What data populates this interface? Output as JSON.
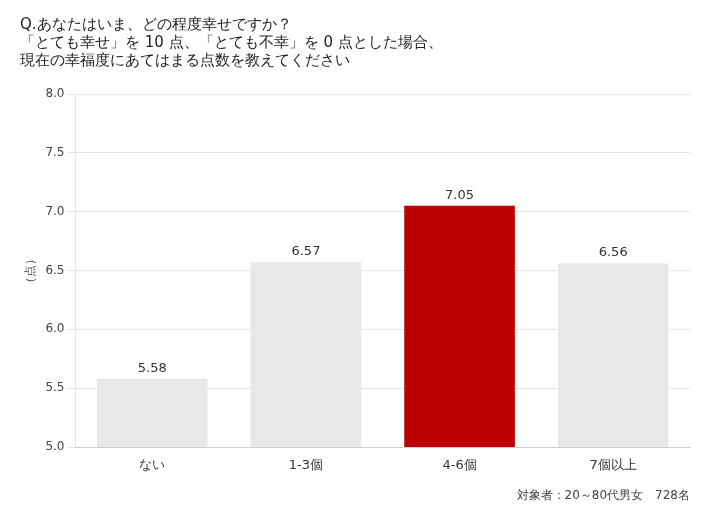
{
  "chart_data": {
    "type": "bar",
    "title": [
      "Q.あなたはいま、どの程度幸せですか？",
      "「とても幸せ」を 10 点、「とても不幸」を 0 点とした場合、",
      "現在の幸福度にあてはまる点数を教えてください"
    ],
    "categories": [
      "ない",
      "1-3個",
      "4-6個",
      "7個以上"
    ],
    "values": [
      5.58,
      6.57,
      7.05,
      6.56
    ],
    "colors": [
      "#e8e8e8",
      "#e8e8e8",
      "#bb0000",
      "#e8e8e8"
    ],
    "ylabel": "（点）",
    "annotations": [
      "対象者：20～80代男女　728名"
    ],
    "ylim": [
      5.0,
      8.0
    ],
    "yticks": [
      {
        "value": 5.0,
        "label": "5.0"
      },
      5.5,
      {
        "value": 6.0,
        "label": "6.0"
      },
      6.5,
      {
        "value": 7.0,
        "label": "7.0"
      },
      7.5,
      {
        "value": 8.0,
        "label": "8.0"
      }
    ],
    "grid": true,
    "data_labels": true
  }
}
